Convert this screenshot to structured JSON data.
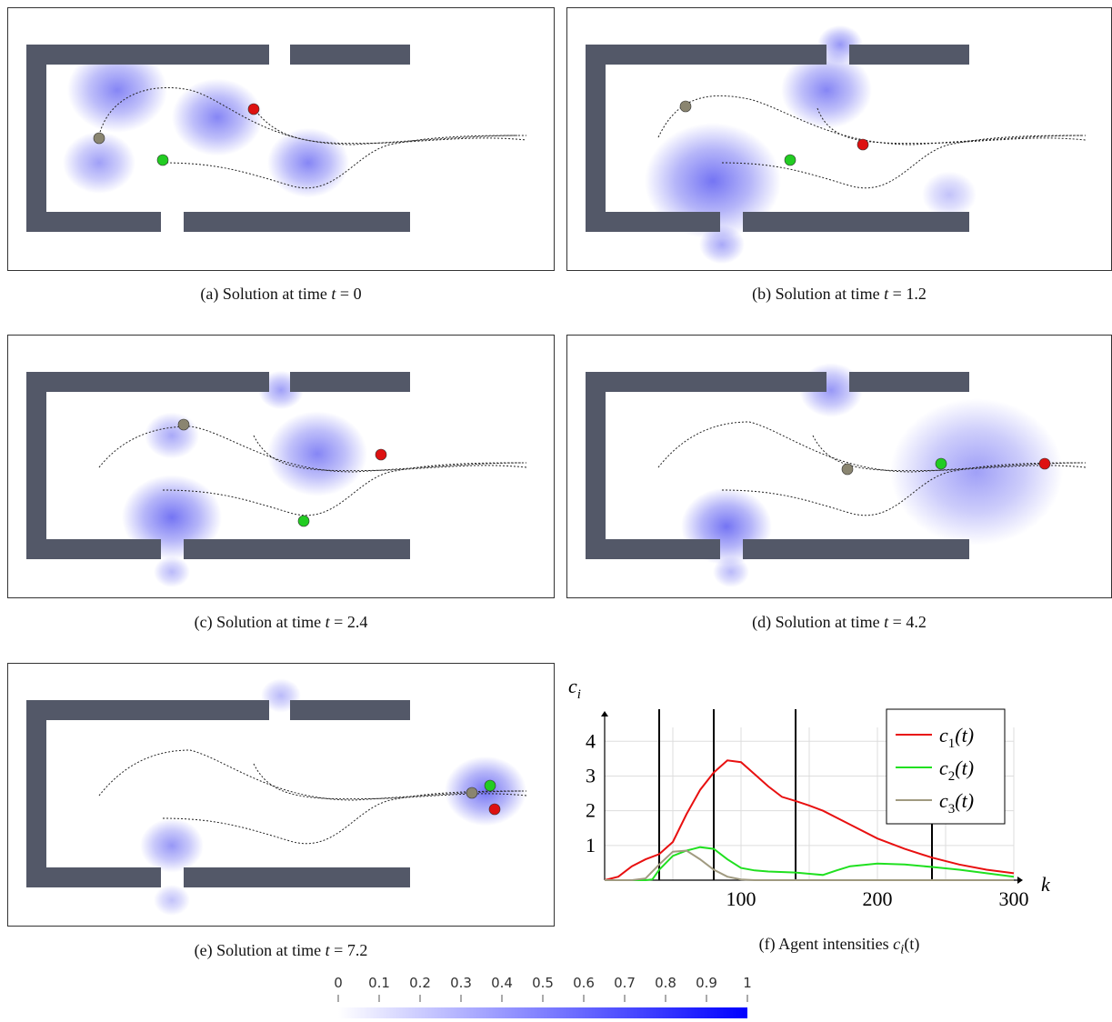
{
  "captions": {
    "a": {
      "prefix": "(a) Solution at time ",
      "var": "t",
      "rest": " = 0"
    },
    "b": {
      "prefix": "(b) Solution at time ",
      "var": "t",
      "rest": " = 1.2"
    },
    "c": {
      "prefix": "(c) Solution at time ",
      "var": "t",
      "rest": " = 2.4"
    },
    "d": {
      "prefix": "(d) Solution at time ",
      "var": "t",
      "rest": " = 4.2"
    },
    "e": {
      "prefix": "(e) Solution at time ",
      "var": "t",
      "rest": " = 7.2"
    },
    "f": {
      "prefix": "(f) Agent intensities ",
      "var": "c",
      "sub": "i",
      "rest": "(t)"
    }
  },
  "colors": {
    "wall": "#535868",
    "density": "#3333ee",
    "agent_red": "#dd1111",
    "agent_green": "#22cc22",
    "agent_gray": "#8a8570"
  },
  "chart_data": {
    "type": "line",
    "ylabel": "c_i",
    "xlabel": "k",
    "xlim": [
      0,
      300
    ],
    "ylim": [
      0,
      4.4
    ],
    "xticks": [
      100,
      200,
      300
    ],
    "yticks": [
      1,
      2,
      3,
      4
    ],
    "vlines": [
      40,
      80,
      140,
      240
    ],
    "legend_position": "top-right",
    "grid": true,
    "series": [
      {
        "name": "c1(t)",
        "color": "#e81010",
        "x": [
          0,
          10,
          20,
          30,
          40,
          50,
          60,
          70,
          80,
          90,
          100,
          110,
          120,
          130,
          140,
          150,
          160,
          180,
          200,
          220,
          240,
          260,
          280,
          300
        ],
        "y": [
          0,
          0.1,
          0.4,
          0.6,
          0.75,
          1.1,
          1.9,
          2.6,
          3.1,
          3.45,
          3.4,
          3.05,
          2.7,
          2.4,
          2.28,
          2.15,
          2.0,
          1.6,
          1.2,
          0.9,
          0.65,
          0.45,
          0.3,
          0.2
        ]
      },
      {
        "name": "c2(t)",
        "color": "#20e020",
        "x": [
          0,
          20,
          30,
          35,
          40,
          50,
          60,
          70,
          80,
          90,
          100,
          110,
          120,
          140,
          160,
          170,
          180,
          200,
          220,
          240,
          260,
          280,
          300
        ],
        "y": [
          0,
          0,
          0,
          0.02,
          0.3,
          0.7,
          0.85,
          0.95,
          0.9,
          0.6,
          0.35,
          0.28,
          0.25,
          0.22,
          0.15,
          0.28,
          0.4,
          0.48,
          0.45,
          0.38,
          0.3,
          0.2,
          0.1
        ]
      },
      {
        "name": "c3(t)",
        "color": "#a09a80",
        "x": [
          0,
          20,
          30,
          40,
          50,
          60,
          70,
          80,
          90,
          100,
          110,
          150,
          200,
          300
        ],
        "y": [
          0,
          0,
          0.05,
          0.45,
          0.82,
          0.85,
          0.6,
          0.3,
          0.1,
          0.02,
          0,
          0,
          0,
          0
        ]
      }
    ]
  },
  "colorbar": {
    "ticks": [
      "0",
      "0.1",
      "0.2",
      "0.3",
      "0.4",
      "0.5",
      "0.6",
      "0.7",
      "0.8",
      "0.9",
      "1"
    ],
    "color_low": "#ffffff",
    "color_high": "#0000ff"
  }
}
